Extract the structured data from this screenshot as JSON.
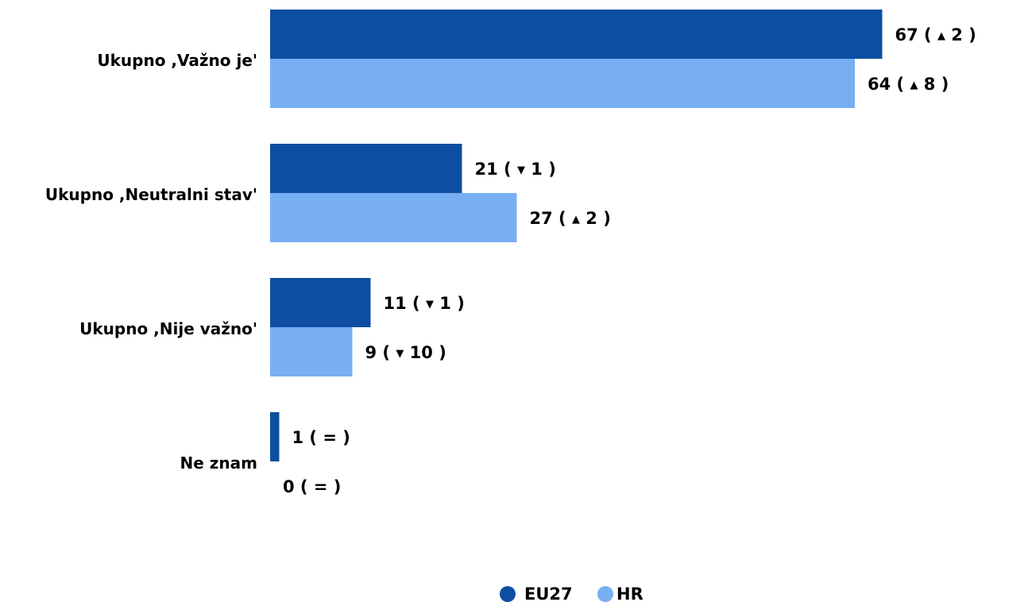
{
  "chart_data": {
    "type": "bar",
    "orientation": "horizontal",
    "categories": [
      "Ukupno ,Važno je'",
      "Ukupno ,Neutralni stav'",
      "Ukupno ,Nije važno'",
      "Ne znam"
    ],
    "series": [
      {
        "name": "EU27",
        "color": "#0d4ea1",
        "values": [
          67,
          21,
          11,
          1
        ],
        "change": [
          {
            "dir": "up",
            "value": "2"
          },
          {
            "dir": "down",
            "value": "1"
          },
          {
            "dir": "down",
            "value": "1"
          },
          {
            "dir": "same",
            "value": "="
          }
        ]
      },
      {
        "name": "HR",
        "color": "#78aff3",
        "values": [
          64,
          27,
          9,
          0
        ],
        "change": [
          {
            "dir": "up",
            "value": "8"
          },
          {
            "dir": "up",
            "value": "2"
          },
          {
            "dir": "down",
            "value": "10"
          },
          {
            "dir": "same",
            "value": "="
          }
        ]
      }
    ],
    "xlim": [
      0,
      67
    ],
    "grid": false,
    "legend": "bottom-center"
  }
}
